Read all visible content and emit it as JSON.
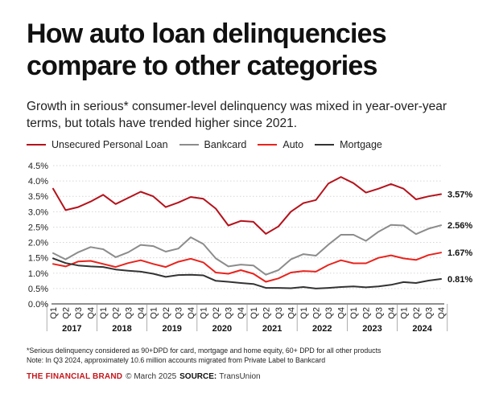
{
  "header": {
    "title": "How auto loan delinquencies compare to other categories",
    "subtitle": "Growth in serious* consumer-level delinquency was mixed in year-over-year terms, but totals have trended higher since 2021."
  },
  "colors": {
    "unsecured": "#b5121b",
    "bankcard": "#8c8c8c",
    "auto": "#e8231c",
    "mortgage": "#333333"
  },
  "chart_data": {
    "type": "line",
    "categories": [
      "Q1",
      "Q2",
      "Q3",
      "Q4",
      "Q1",
      "Q2",
      "Q3",
      "Q4",
      "Q1",
      "Q2",
      "Q3",
      "Q4",
      "Q1",
      "Q2",
      "Q3",
      "Q4",
      "Q1",
      "Q2",
      "Q3",
      "Q4",
      "Q1",
      "Q2",
      "Q3",
      "Q4",
      "Q1",
      "Q2",
      "Q3",
      "Q4",
      "Q1",
      "Q2",
      "Q3",
      "Q4"
    ],
    "year_labels": [
      "2017",
      "2018",
      "2019",
      "2020",
      "2021",
      "2022",
      "2023",
      "2024"
    ],
    "y_ticks": [
      "0.0%",
      "0.5%",
      "1.0%",
      "1.5%",
      "2.0%",
      "2.5%",
      "3.0%",
      "3.5%",
      "4.0%",
      "4.5%"
    ],
    "ylim": [
      0,
      4.5
    ],
    "series": [
      {
        "name": "Unsecured Personal Loan",
        "color_key": "unsecured",
        "end_label": "3.57%",
        "values": [
          3.75,
          3.05,
          3.15,
          3.33,
          3.55,
          3.25,
          3.45,
          3.65,
          3.5,
          3.15,
          3.3,
          3.48,
          3.42,
          3.1,
          2.55,
          2.7,
          2.67,
          2.28,
          2.52,
          3.0,
          3.28,
          3.38,
          3.92,
          4.13,
          3.93,
          3.62,
          3.75,
          3.9,
          3.75,
          3.4,
          3.5,
          3.57
        ]
      },
      {
        "name": "Bankcard",
        "color_key": "bankcard",
        "end_label": "2.56%",
        "values": [
          1.65,
          1.45,
          1.68,
          1.85,
          1.78,
          1.52,
          1.68,
          1.92,
          1.88,
          1.7,
          1.8,
          2.17,
          1.95,
          1.48,
          1.22,
          1.28,
          1.25,
          0.95,
          1.1,
          1.45,
          1.62,
          1.57,
          1.93,
          2.25,
          2.25,
          2.05,
          2.35,
          2.57,
          2.55,
          2.27,
          2.45,
          2.56
        ]
      },
      {
        "name": "Auto",
        "color_key": "auto",
        "end_label": "1.67%",
        "values": [
          1.3,
          1.22,
          1.38,
          1.4,
          1.3,
          1.2,
          1.33,
          1.42,
          1.3,
          1.2,
          1.37,
          1.47,
          1.35,
          1.02,
          0.98,
          1.1,
          0.98,
          0.72,
          0.83,
          1.02,
          1.07,
          1.05,
          1.27,
          1.42,
          1.32,
          1.32,
          1.5,
          1.58,
          1.48,
          1.43,
          1.59,
          1.67
        ]
      },
      {
        "name": "Mortgage",
        "color_key": "mortgage",
        "end_label": "0.81%",
        "values": [
          1.48,
          1.33,
          1.25,
          1.22,
          1.2,
          1.12,
          1.08,
          1.05,
          0.98,
          0.88,
          0.94,
          0.95,
          0.93,
          0.75,
          0.72,
          0.68,
          0.65,
          0.52,
          0.52,
          0.51,
          0.55,
          0.5,
          0.52,
          0.55,
          0.57,
          0.54,
          0.57,
          0.62,
          0.71,
          0.68,
          0.76,
          0.81
        ]
      }
    ]
  },
  "footnote": {
    "line1": "*Serious delinquency considered as 90+DPD for card, mortgage and home equity, 60+ DPD for all other products",
    "line2": "Note: In Q3 2024, approximately 10.6 million accounts migrated from Private Label to Bankcard"
  },
  "footer": {
    "brand": "THE FINANCIAL BRAND",
    "credit": "© March 2025",
    "source_label": "SOURCE:",
    "source": "TransUnion"
  }
}
